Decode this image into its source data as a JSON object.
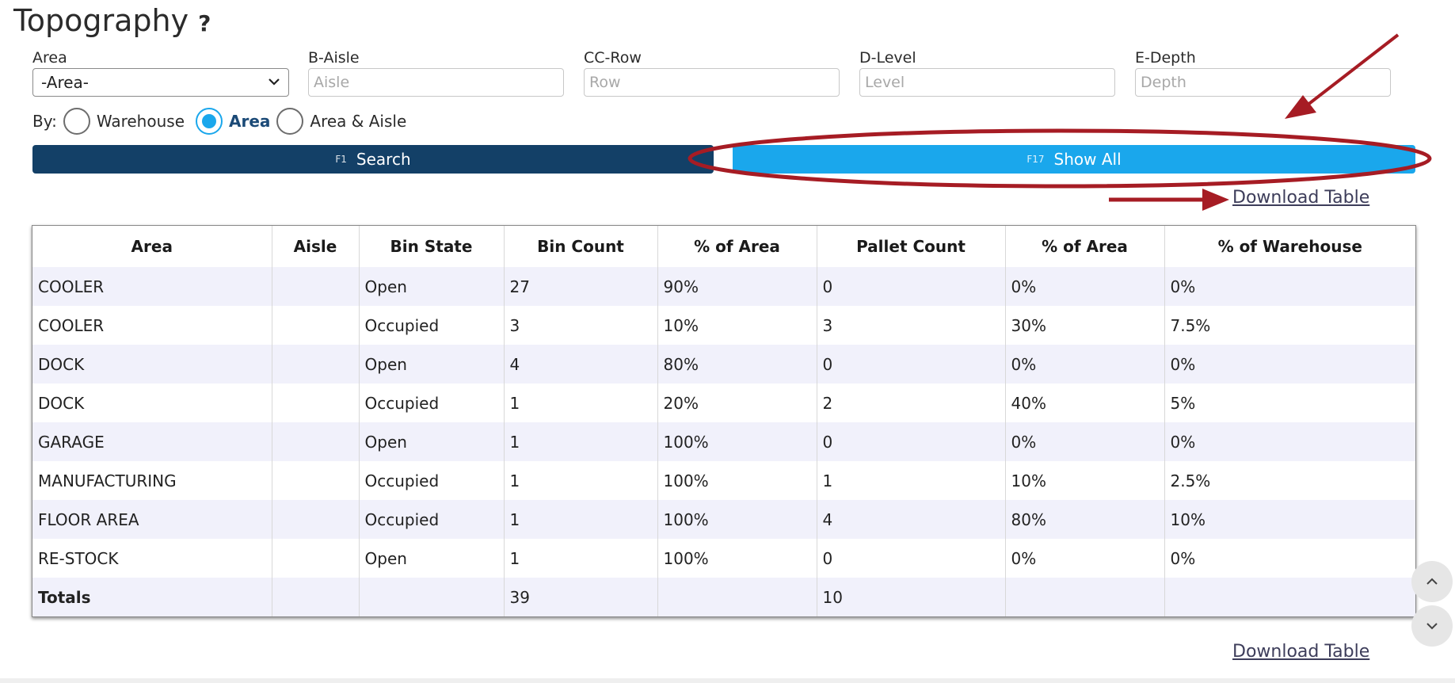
{
  "page": {
    "title": "Topography",
    "help_glyph": "?"
  },
  "filters": {
    "area": {
      "label": "Area",
      "selected": "-Area-",
      "options": [
        "-Area-"
      ]
    },
    "aisle": {
      "label": "B-Aisle",
      "placeholder": "Aisle"
    },
    "row": {
      "label": "CC-Row",
      "placeholder": "Row"
    },
    "level": {
      "label": "D-Level",
      "placeholder": "Level"
    },
    "depth": {
      "label": "E-Depth",
      "placeholder": "Depth"
    }
  },
  "by": {
    "label": "By:",
    "options": [
      {
        "label": "Warehouse",
        "checked": false
      },
      {
        "label": "Area",
        "checked": true
      },
      {
        "label": "Area & Aisle",
        "checked": false
      }
    ]
  },
  "buttons": {
    "search": {
      "key": "F1",
      "label": "Search"
    },
    "show_all": {
      "key": "F17",
      "label": "Show All"
    }
  },
  "download": {
    "label": "Download Table"
  },
  "table": {
    "headers": [
      "Area",
      "Aisle",
      "Bin State",
      "Bin Count",
      "% of Area",
      "Pallet Count",
      "% of Area",
      "% of Warehouse"
    ],
    "rows": [
      [
        "COOLER",
        "",
        "Open",
        "27",
        "90%",
        "0",
        "0%",
        "0%"
      ],
      [
        "COOLER",
        "",
        "Occupied",
        "3",
        "10%",
        "3",
        "30%",
        "7.5%"
      ],
      [
        "DOCK",
        "",
        "Open",
        "4",
        "80%",
        "0",
        "0%",
        "0%"
      ],
      [
        "DOCK",
        "",
        "Occupied",
        "1",
        "20%",
        "2",
        "40%",
        "5%"
      ],
      [
        "GARAGE",
        "",
        "Open",
        "1",
        "100%",
        "0",
        "0%",
        "0%"
      ],
      [
        "MANUFACTURING",
        "",
        "Occupied",
        "1",
        "100%",
        "1",
        "10%",
        "2.5%"
      ],
      [
        "FLOOR AREA",
        "",
        "Occupied",
        "1",
        "100%",
        "4",
        "80%",
        "10%"
      ],
      [
        "RE-STOCK",
        "",
        "Open",
        "1",
        "100%",
        "0",
        "0%",
        "0%"
      ]
    ],
    "totals": [
      "Totals",
      "",
      "",
      "39",
      "",
      "10",
      "",
      ""
    ]
  },
  "colors": {
    "primary": "#134067",
    "accent": "#1aa7ec",
    "annotation": "#a61c24",
    "row_stripe": "#f1f1fb"
  },
  "icons": {
    "select": "chevron-down-icon",
    "scroll_up": "chevron-up-icon",
    "scroll_down": "chevron-down-icon"
  }
}
